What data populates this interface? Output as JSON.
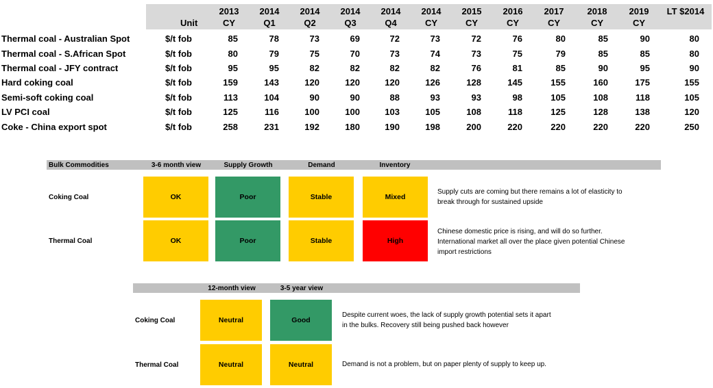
{
  "price_table": {
    "unit_header": "Unit",
    "columns": [
      {
        "line1": "2013",
        "line2": "CY"
      },
      {
        "line1": "2014",
        "line2": "Q1"
      },
      {
        "line1": "2014",
        "line2": "Q2"
      },
      {
        "line1": "2014",
        "line2": "Q3"
      },
      {
        "line1": "2014",
        "line2": "Q4"
      },
      {
        "line1": "2014",
        "line2": "CY"
      },
      {
        "line1": "2015",
        "line2": "CY"
      },
      {
        "line1": "2016",
        "line2": "CY"
      },
      {
        "line1": "2017",
        "line2": "CY"
      },
      {
        "line1": "2018",
        "line2": "CY"
      },
      {
        "line1": "2019",
        "line2": "CY"
      },
      {
        "line1": "LT $2014",
        "line2": ""
      }
    ],
    "rows": [
      {
        "label": "Thermal coal - Australian Spot",
        "unit": "$/t fob",
        "values": [
          "85",
          "78",
          "73",
          "69",
          "72",
          "73",
          "72",
          "76",
          "80",
          "85",
          "90",
          "80"
        ]
      },
      {
        "label": "Thermal coal - S.African Spot",
        "unit": "$/t fob",
        "values": [
          "80",
          "79",
          "75",
          "70",
          "73",
          "74",
          "73",
          "75",
          "79",
          "85",
          "85",
          "80"
        ]
      },
      {
        "label": "Thermal coal - JFY contract",
        "unit": "$/t fob",
        "values": [
          "95",
          "95",
          "82",
          "82",
          "82",
          "82",
          "76",
          "81",
          "85",
          "90",
          "95",
          "90"
        ]
      },
      {
        "label": "Hard coking coal",
        "unit": "$/t fob",
        "values": [
          "159",
          "143",
          "120",
          "120",
          "120",
          "126",
          "128",
          "145",
          "155",
          "160",
          "175",
          "155"
        ]
      },
      {
        "label": "Semi-soft coking coal",
        "unit": "$/t fob",
        "values": [
          "113",
          "104",
          "90",
          "90",
          "88",
          "93",
          "93",
          "98",
          "105",
          "108",
          "118",
          "105"
        ]
      },
      {
        "label": "LV PCI coal",
        "unit": "$/t fob",
        "values": [
          "125",
          "116",
          "100",
          "100",
          "103",
          "105",
          "108",
          "118",
          "125",
          "128",
          "138",
          "120"
        ]
      },
      {
        "label": "Coke - China export spot",
        "unit": "$/t fob",
        "values": [
          "258",
          "231",
          "192",
          "180",
          "190",
          "198",
          "200",
          "220",
          "220",
          "220",
          "220",
          "250"
        ]
      }
    ]
  },
  "matrix1": {
    "corner": "Bulk Commodities",
    "columns": [
      "3-6 month view",
      "Supply Growth",
      "Demand",
      "Inventory"
    ],
    "rows": [
      {
        "label": "Coking Coal",
        "cells": [
          {
            "text": "OK",
            "color": "#ffcc00"
          },
          {
            "text": "Poor",
            "color": "#339966"
          },
          {
            "text": "Stable",
            "color": "#ffcc00"
          },
          {
            "text": "Mixed",
            "color": "#ffcc00"
          }
        ],
        "comment": [
          "Supply cuts are coming but there remains a lot of elasticity to",
          "break through for sustained upside"
        ]
      },
      {
        "label": "Thermal Coal",
        "cells": [
          {
            "text": "OK",
            "color": "#ffcc00"
          },
          {
            "text": "Poor",
            "color": "#339966"
          },
          {
            "text": "Stable",
            "color": "#ffcc00"
          },
          {
            "text": "High",
            "color": "#ff0000"
          }
        ],
        "comment": [
          "Chinese domestic price is rising, and will do so further.",
          "International market all over the place given potential Chinese",
          "import restrictions"
        ]
      }
    ]
  },
  "matrix2": {
    "columns": [
      "12-month view",
      "3-5 year view"
    ],
    "rows": [
      {
        "label": "Coking Coal",
        "cells": [
          {
            "text": "Neutral",
            "color": "#ffcc00"
          },
          {
            "text": "Good",
            "color": "#339966"
          }
        ],
        "comment": [
          "Despite current woes, the lack of supply growth potential sets it apart",
          "in the bulks.  Recovery still being pushed back however"
        ]
      },
      {
        "label": "Thermal Coal",
        "cells": [
          {
            "text": "Neutral",
            "color": "#ffcc00"
          },
          {
            "text": "Neutral",
            "color": "#ffcc00"
          }
        ],
        "comment": [
          "Demand is not a problem, but on paper plenty of supply to keep up."
        ]
      }
    ]
  }
}
